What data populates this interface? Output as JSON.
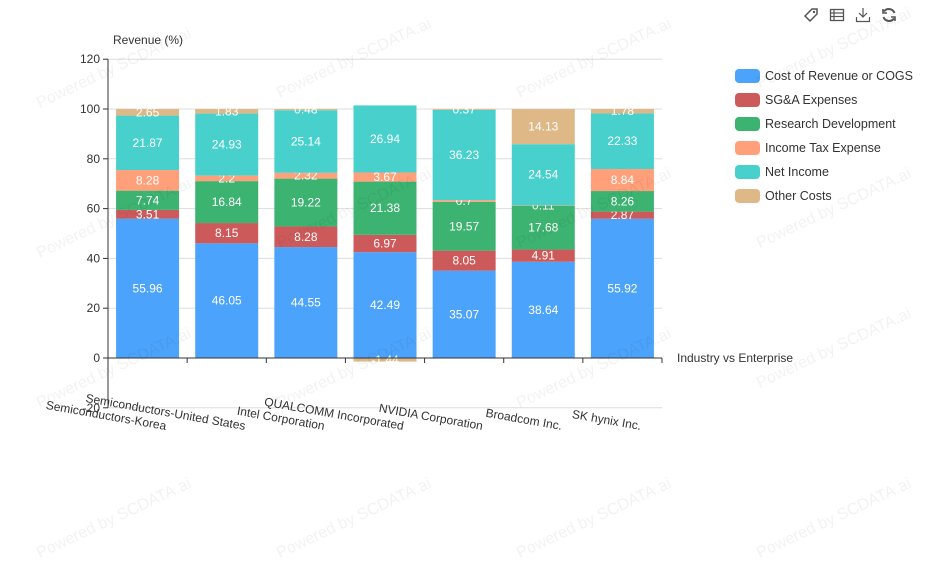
{
  "toolbar": {
    "icons": [
      "tag-icon",
      "data-view-icon",
      "download-icon",
      "refresh-icon"
    ]
  },
  "watermark": "Powered by SCDATA.ai",
  "chart_data": {
    "type": "bar",
    "stacked": true,
    "title": "",
    "ylabel": "Revenue (%)",
    "xlabel": "Industry vs Enterprise",
    "ylim": [
      -20,
      120
    ],
    "yticks": [
      -20,
      0,
      20,
      40,
      60,
      80,
      100,
      120
    ],
    "grid": true,
    "legend_position": "right",
    "categories": [
      "Semiconductors-Korea",
      "Semiconductors-United States",
      "Intel Corporation",
      "QUALCOMM Incorporated",
      "NVIDIA Corporation",
      "Broadcom Inc.",
      "SK hynix Inc."
    ],
    "series": [
      {
        "name": "Cost of Revenue or COGS",
        "color": "#4ca3fb",
        "values": [
          55.96,
          46.05,
          44.55,
          42.49,
          35.07,
          38.64,
          55.92
        ]
      },
      {
        "name": "SG&A Expenses",
        "color": "#cd5a5a",
        "values": [
          3.51,
          8.15,
          8.28,
          6.97,
          8.05,
          4.91,
          2.87
        ]
      },
      {
        "name": "Research Development",
        "color": "#3cb371",
        "values": [
          7.74,
          16.84,
          19.22,
          21.38,
          19.57,
          17.68,
          8.26
        ]
      },
      {
        "name": "Income Tax Expense",
        "color": "#ffa07a",
        "values": [
          8.28,
          2.2,
          2.32,
          3.67,
          0.7,
          0.11,
          8.84
        ]
      },
      {
        "name": "Net Income",
        "color": "#48d1cc",
        "values": [
          21.87,
          24.93,
          25.14,
          26.94,
          36.23,
          24.54,
          22.33
        ]
      },
      {
        "name": "Other Costs",
        "color": "#deb887",
        "values": [
          2.65,
          1.83,
          0.48,
          -1.44,
          0.37,
          14.13,
          1.78
        ]
      }
    ]
  }
}
